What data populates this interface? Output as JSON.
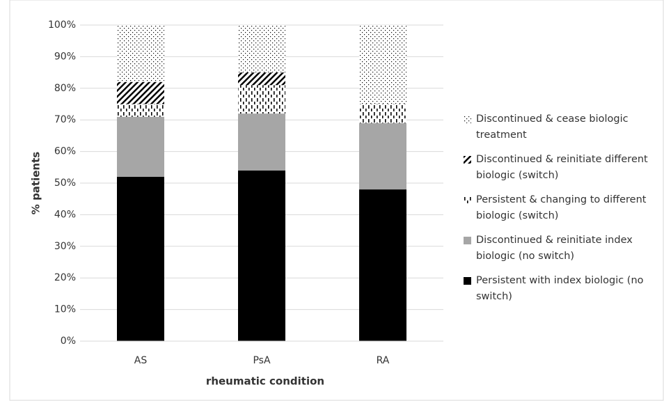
{
  "chart_data": {
    "type": "stacked_bar",
    "x_label": "rheumatic condition",
    "y_label": "% patients",
    "categories": [
      "AS",
      "PsA",
      "RA"
    ],
    "series": [
      {
        "name": "Persistent with index biologic (no switch)",
        "color": "#000000",
        "values": [
          52,
          54,
          48
        ]
      },
      {
        "name": "Discontinued & reinitiate index biologic (no switch)",
        "color": "#a6a6a6",
        "values": [
          19,
          18,
          21
        ]
      },
      {
        "name": "Persistent & changing to different biologic (switch)",
        "color": "#000000",
        "pattern": "dashes",
        "values": [
          4,
          9,
          6
        ]
      },
      {
        "name": "Discontinued & reinitiate different biologic (switch)",
        "color": "#000000",
        "pattern": "hatch",
        "values": [
          7,
          4,
          0
        ]
      },
      {
        "name": "Discontinued & cease biologic treatment",
        "color": "#000000",
        "pattern": "dots",
        "values": [
          18,
          15,
          25
        ]
      }
    ],
    "ylim": [
      0,
      100
    ],
    "yticks": [
      {
        "value": 0,
        "label": "0%"
      },
      {
        "value": 10,
        "label": "10%"
      },
      {
        "value": 20,
        "label": "20%"
      },
      {
        "value": 30,
        "label": "30%"
      },
      {
        "value": 40,
        "label": "40%"
      },
      {
        "value": 50,
        "label": "50%"
      },
      {
        "value": 60,
        "label": "60%"
      },
      {
        "value": 70,
        "label": "70%"
      },
      {
        "value": 80,
        "label": "80%"
      },
      {
        "value": 90,
        "label": "90%"
      },
      {
        "value": 100,
        "label": "100%"
      }
    ],
    "grid": true,
    "legend": "right"
  }
}
